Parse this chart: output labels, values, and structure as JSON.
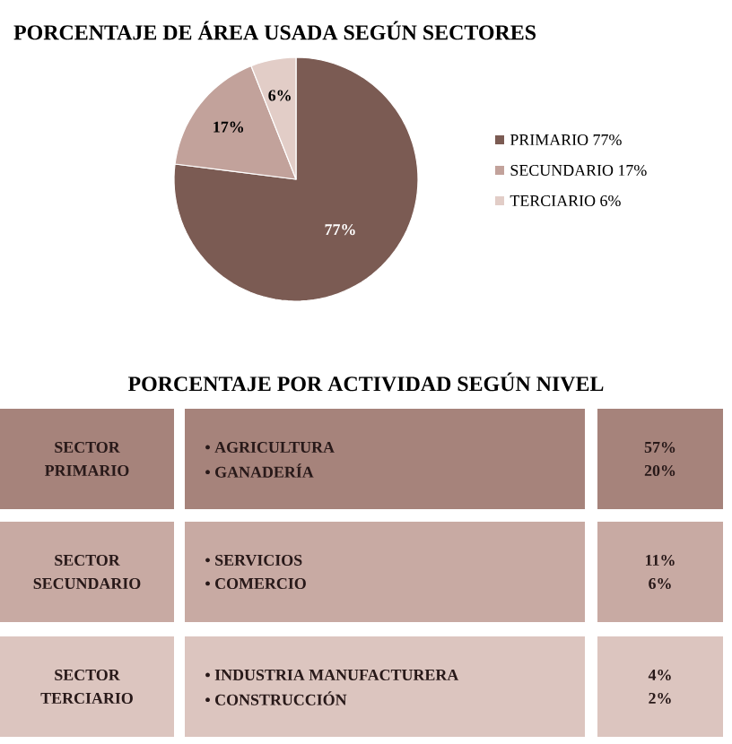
{
  "chart_data": [
    {
      "type": "pie",
      "title": "PORCENTAJE DE ÁREA USADA SEGÚN SECTORES",
      "categories": [
        "PRIMARIO 77%",
        "SECUNDARIO 17%",
        "TERCIARIO 6%"
      ],
      "values": [
        77,
        17,
        6
      ],
      "colors": [
        "#7b5b53",
        "#c2a29b",
        "#e2cdc7"
      ],
      "value_labels": [
        "77%",
        "17%",
        "6%"
      ],
      "legend": "right"
    },
    {
      "type": "other",
      "title": "PORCENTAJE POR ACTIVIDAD SEGÚN NIVEL",
      "colors": [
        "#a6837b",
        "#c8aaa3",
        "#dcc5bf"
      ],
      "annotations": [
        "SECTOR",
        "PRIMARIO",
        "• AGRICULTURA",
        "• GANADERÍA",
        "57%",
        "20%",
        "SECTOR",
        "SECUNDARIO",
        "• SERVICIOS",
        "• COMERCIO",
        "11%",
        "6%",
        "SECTOR",
        "TERCIARIO",
        "• INDUSTRIA MANUFACTURERA",
        "• CONSTRUCCIÓN",
        "4%",
        "2%"
      ]
    }
  ]
}
